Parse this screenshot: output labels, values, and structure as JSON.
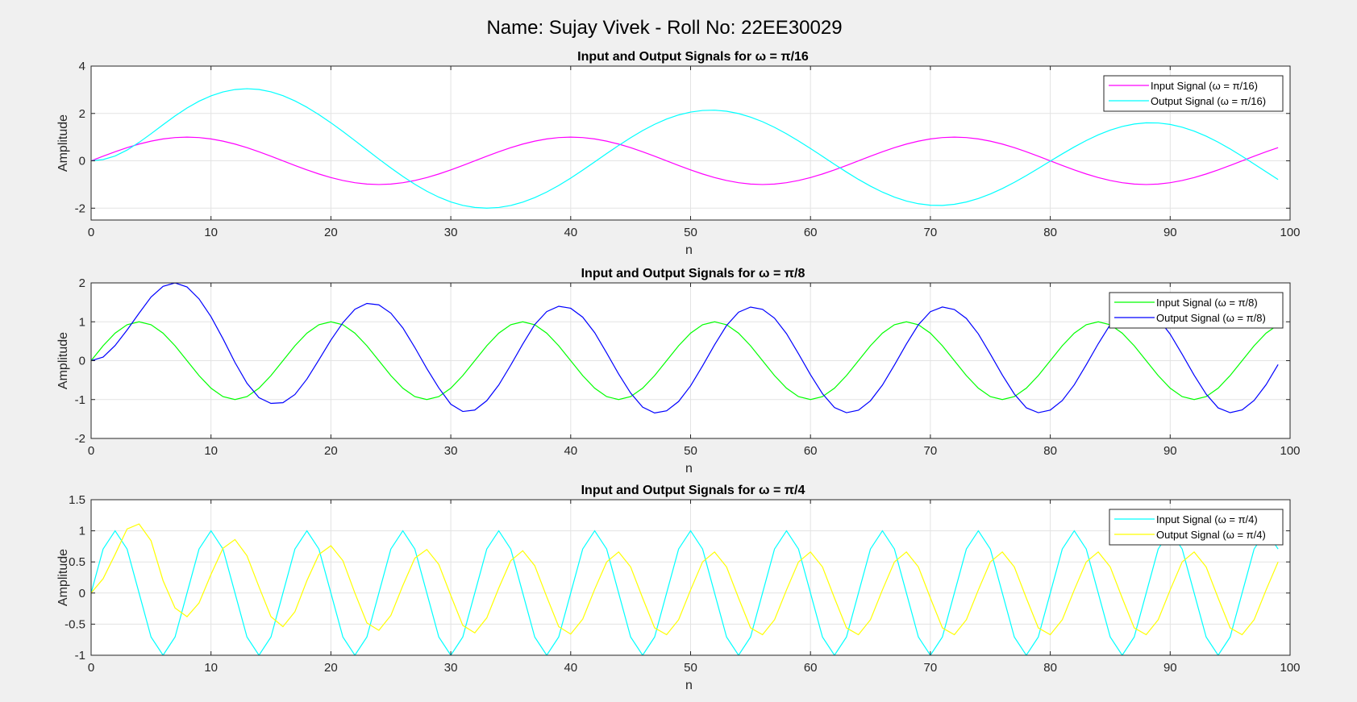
{
  "figure": {
    "title": "Name: Sujay Vivek - Roll No: 22EE30029"
  },
  "chart_data": [
    {
      "type": "line",
      "title": "Input and Output Signals for ω = π/16",
      "xlabel": "n",
      "ylabel": "Amplitude",
      "xlim": [
        0,
        100
      ],
      "ylim": [
        -2.5,
        4
      ],
      "xticks": [
        0,
        10,
        20,
        30,
        40,
        50,
        60,
        70,
        80,
        90,
        100
      ],
      "yticks": [
        -2,
        0,
        2,
        4
      ],
      "ytick_labels": [
        "-2",
        "0",
        "2",
        "4"
      ],
      "grid": true,
      "legend_position": "top-right",
      "x": {
        "start": 0,
        "end": 99,
        "step": 1
      },
      "series": [
        {
          "name": "Input Signal (ω = π/16)",
          "color": "#ff00ff",
          "values": [
            0.0,
            0.195,
            0.383,
            0.556,
            0.707,
            0.831,
            0.924,
            0.981,
            1.0,
            0.981,
            0.924,
            0.831,
            0.707,
            0.556,
            0.383,
            0.195,
            0.0,
            -0.195,
            -0.383,
            -0.556,
            -0.707,
            -0.831,
            -0.924,
            -0.981,
            -1.0,
            -0.981,
            -0.924,
            -0.831,
            -0.707,
            -0.556,
            -0.383,
            -0.195,
            0.0,
            0.195,
            0.383,
            0.556,
            0.707,
            0.831,
            0.924,
            0.981,
            1.0,
            0.981,
            0.924,
            0.831,
            0.707,
            0.556,
            0.383,
            0.195,
            0.0,
            -0.195,
            -0.383,
            -0.556,
            -0.707,
            -0.831,
            -0.924,
            -0.981,
            -1.0,
            -0.981,
            -0.924,
            -0.831,
            -0.707,
            -0.556,
            -0.383,
            -0.195,
            0.0,
            0.195,
            0.383,
            0.556,
            0.707,
            0.831,
            0.924,
            0.981,
            1.0,
            0.981,
            0.924,
            0.831,
            0.707,
            0.556,
            0.383,
            0.195,
            0.0,
            -0.195,
            -0.383,
            -0.556,
            -0.707,
            -0.831,
            -0.924,
            -0.981,
            -1.0,
            -0.981,
            -0.924,
            -0.831,
            -0.707,
            -0.556,
            -0.383,
            -0.195,
            0.0,
            0.195,
            0.383,
            0.556
          ]
        },
        {
          "name": "Output Signal (ω = π/16)",
          "color": "#00ffff",
          "values": [
            0.0,
            0.052,
            0.203,
            0.454,
            0.778,
            1.143,
            1.523,
            1.894,
            2.232,
            2.517,
            2.743,
            2.909,
            3.01,
            3.045,
            3.012,
            2.913,
            2.751,
            2.531,
            2.262,
            1.951,
            1.607,
            1.238,
            0.854,
            0.464,
            0.076,
            -0.3,
            -0.659,
            -0.99,
            -1.284,
            -1.534,
            -1.735,
            -1.88,
            -1.968,
            -1.998,
            -1.971,
            -1.886,
            -1.746,
            -1.555,
            -1.318,
            -1.04,
            -0.729,
            -0.394,
            -0.045,
            0.306,
            0.65,
            0.977,
            1.277,
            1.541,
            1.763,
            1.937,
            2.059,
            2.126,
            2.138,
            2.094,
            1.996,
            1.847,
            1.652,
            1.414,
            1.142,
            0.841,
            0.521,
            0.189,
            -0.146,
            -0.473,
            -0.784,
            -1.069,
            -1.321,
            -1.532,
            -1.697,
            -1.812,
            -1.874,
            -1.882,
            -1.836,
            -1.738,
            -1.591,
            -1.4,
            -1.17,
            -0.909,
            -0.623,
            -0.321,
            -0.012,
            0.293,
            0.586,
            0.856,
            1.096,
            1.296,
            1.451,
            1.555,
            1.605,
            1.599,
            1.537,
            1.421,
            1.254,
            1.041,
            0.788,
            0.502,
            0.192,
            -0.133,
            -0.463,
            -0.789
          ]
        }
      ]
    },
    {
      "type": "line",
      "title": "Input and Output Signals for ω = π/8",
      "xlabel": "n",
      "ylabel": "Amplitude",
      "xlim": [
        0,
        100
      ],
      "ylim": [
        -2,
        2
      ],
      "xticks": [
        0,
        10,
        20,
        30,
        40,
        50,
        60,
        70,
        80,
        90,
        100
      ],
      "yticks": [
        -2,
        -1,
        0,
        1,
        2
      ],
      "ytick_labels": [
        "-2",
        "-1",
        "0",
        "1",
        "2"
      ],
      "grid": true,
      "legend_position": "top-right",
      "x": {
        "start": 0,
        "end": 99,
        "step": 1
      },
      "series": [
        {
          "name": "Input Signal (ω = π/8)",
          "color": "#00ff00",
          "values": [
            0.0,
            0.383,
            0.707,
            0.924,
            1.0,
            0.924,
            0.707,
            0.383,
            0.0,
            -0.383,
            -0.707,
            -0.924,
            -1.0,
            -0.924,
            -0.707,
            -0.383,
            0.0,
            0.383,
            0.707,
            0.924,
            1.0,
            0.924,
            0.707,
            0.383,
            0.0,
            -0.383,
            -0.707,
            -0.924,
            -1.0,
            -0.924,
            -0.707,
            -0.383,
            0.0,
            0.383,
            0.707,
            0.924,
            1.0,
            0.924,
            0.707,
            0.383,
            0.0,
            -0.383,
            -0.707,
            -0.924,
            -1.0,
            -0.924,
            -0.707,
            -0.383,
            0.0,
            0.383,
            0.707,
            0.924,
            1.0,
            0.924,
            0.707,
            0.383,
            0.0,
            -0.383,
            -0.707,
            -0.924,
            -1.0,
            -0.924,
            -0.707,
            -0.383,
            0.0,
            0.383,
            0.707,
            0.924,
            1.0,
            0.924,
            0.707,
            0.383,
            0.0,
            -0.383,
            -0.707,
            -0.924,
            -1.0,
            -0.924,
            -0.707,
            -0.383,
            0.0,
            0.383,
            0.707,
            0.924,
            1.0,
            0.924,
            0.707,
            0.383,
            0.0,
            -0.383,
            -0.707,
            -0.924,
            -1.0,
            -0.924,
            -0.707,
            -0.383,
            0.0,
            0.383,
            0.707,
            0.924
          ]
        },
        {
          "name": "Output Signal (ω = π/8)",
          "color": "#0000ff",
          "values": [
            0.0,
            0.092,
            0.389,
            0.787,
            1.22,
            1.636,
            1.912,
            2.0,
            1.895,
            1.589,
            1.131,
            0.563,
            -0.047,
            -0.58,
            -0.952,
            -1.098,
            -1.081,
            -0.87,
            -0.473,
            0.022,
            0.53,
            0.978,
            1.322,
            1.471,
            1.435,
            1.222,
            0.843,
            0.339,
            -0.203,
            -0.701,
            -1.119,
            -1.307,
            -1.27,
            -1.029,
            -0.625,
            -0.114,
            0.427,
            0.929,
            1.262,
            1.399,
            1.348,
            1.12,
            0.721,
            0.198,
            -0.343,
            -0.832,
            -1.194,
            -1.345,
            -1.289,
            -1.05,
            -0.647,
            -0.133,
            0.407,
            0.904,
            1.247,
            1.378,
            1.32,
            1.092,
            0.695,
            0.178,
            -0.361,
            -0.849,
            -1.206,
            -1.338,
            -1.274,
            -1.032,
            -0.628,
            -0.112,
            0.428,
            0.924,
            1.26,
            1.38,
            1.316,
            1.086,
            0.688,
            0.169,
            -0.37,
            -0.857,
            -1.212,
            -1.338,
            -1.27,
            -1.026,
            -0.621,
            -0.104,
            0.435,
            0.929,
            1.263,
            1.38,
            1.313,
            1.081,
            0.682,
            0.164,
            -0.375,
            -0.861,
            -1.214,
            -1.337,
            -1.267,
            -1.022,
            -0.617,
            -0.1
          ]
        }
      ]
    },
    {
      "type": "line",
      "title": "Input and Output Signals for ω = π/4",
      "xlabel": "n",
      "ylabel": "Amplitude",
      "xlim": [
        0,
        100
      ],
      "ylim": [
        -1,
        1.5
      ],
      "xticks": [
        0,
        10,
        20,
        30,
        40,
        50,
        60,
        70,
        80,
        90,
        100
      ],
      "yticks": [
        -1,
        -0.5,
        0,
        0.5,
        1,
        1.5
      ],
      "ytick_labels": [
        "-1",
        "-0.5",
        "0",
        "0.5",
        "1",
        "1.5"
      ],
      "grid": true,
      "legend_position": "top-right",
      "x": {
        "start": 0,
        "end": 99,
        "step": 1
      },
      "series": [
        {
          "name": "Input Signal (ω = π/4)",
          "color": "#00ffff",
          "values": [
            0.0,
            0.707,
            1.0,
            0.707,
            0.0,
            -0.707,
            -1.0,
            -0.707,
            0.0,
            0.707,
            1.0,
            0.707,
            0.0,
            -0.707,
            -1.0,
            -0.707,
            0.0,
            0.707,
            1.0,
            0.707,
            0.0,
            -0.707,
            -1.0,
            -0.707,
            0.0,
            0.707,
            1.0,
            0.707,
            0.0,
            -0.707,
            -1.0,
            -0.707,
            0.0,
            0.707,
            1.0,
            0.707,
            0.0,
            -0.707,
            -1.0,
            -0.707,
            0.0,
            0.707,
            1.0,
            0.707,
            0.0,
            -0.707,
            -1.0,
            -0.707,
            0.0,
            0.707,
            1.0,
            0.707,
            0.0,
            -0.707,
            -1.0,
            -0.707,
            0.0,
            0.707,
            1.0,
            0.707,
            0.0,
            -0.707,
            -1.0,
            -0.707,
            0.0,
            0.707,
            1.0,
            0.707,
            0.0,
            -0.707,
            -1.0,
            -0.707,
            0.0,
            0.707,
            1.0,
            0.707,
            0.0,
            -0.707,
            -1.0,
            -0.707,
            0.0,
            0.707,
            1.0,
            0.707,
            0.0,
            -0.707,
            -1.0,
            -0.707,
            0.0,
            0.707,
            1.0,
            0.707,
            0.0,
            -0.707,
            -1.0,
            -0.707,
            0.0,
            0.707,
            1.0,
            0.707
          ]
        },
        {
          "name": "Output Signal (ω = π/4)",
          "color": "#ffff00",
          "values": [
            0.0,
            0.23,
            0.62,
            1.03,
            1.11,
            0.84,
            0.2,
            -0.24,
            -0.38,
            -0.16,
            0.3,
            0.72,
            0.86,
            0.6,
            0.1,
            -0.38,
            -0.54,
            -0.3,
            0.2,
            0.62,
            0.76,
            0.52,
            0.0,
            -0.48,
            -0.6,
            -0.36,
            0.12,
            0.56,
            0.7,
            0.46,
            -0.04,
            -0.52,
            -0.64,
            -0.4,
            0.08,
            0.52,
            0.68,
            0.44,
            -0.06,
            -0.54,
            -0.66,
            -0.42,
            0.06,
            0.5,
            0.66,
            0.42,
            -0.08,
            -0.56,
            -0.67,
            -0.43,
            0.05,
            0.5,
            0.66,
            0.42,
            -0.08,
            -0.56,
            -0.67,
            -0.43,
            0.05,
            0.5,
            0.66,
            0.42,
            -0.08,
            -0.56,
            -0.67,
            -0.43,
            0.05,
            0.5,
            0.66,
            0.42,
            -0.08,
            -0.56,
            -0.67,
            -0.43,
            0.05,
            0.5,
            0.66,
            0.42,
            -0.08,
            -0.56,
            -0.67,
            -0.43,
            0.05,
            0.5,
            0.66,
            0.42,
            -0.08,
            -0.56,
            -0.67,
            -0.43,
            0.05,
            0.5,
            0.66,
            0.42,
            -0.08,
            -0.56,
            -0.67,
            -0.43,
            0.05,
            0.5
          ]
        }
      ]
    }
  ]
}
